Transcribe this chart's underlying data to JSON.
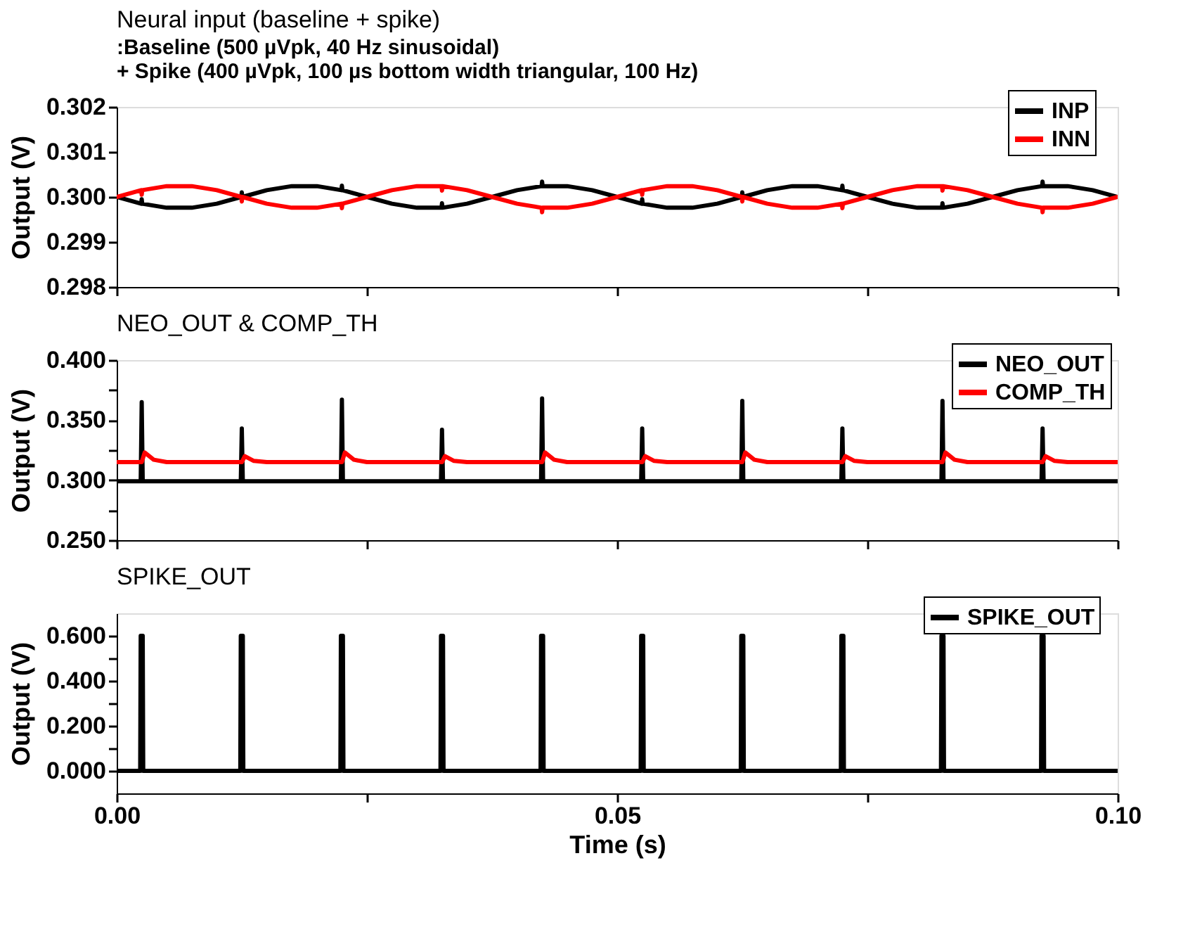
{
  "chart_data": [
    {
      "type": "line",
      "title": "Neural input (baseline + spike)",
      "annotations": [
        ":Baseline (500 µVpk, 40 Hz sinusoidal)",
        "+ Spike (400 µVpk, 100 µs bottom width triangular, 100 Hz)"
      ],
      "ylabel": "Output (V)",
      "x": [
        0,
        0.00245,
        0.0025,
        0.00255,
        0.005,
        0.0075,
        0.01,
        0.01245,
        0.0125,
        0.01255,
        0.015,
        0.0175,
        0.02,
        0.02245,
        0.0225,
        0.02255,
        0.025,
        0.0275,
        0.03,
        0.03245,
        0.0325,
        0.03255,
        0.035,
        0.0375,
        0.04,
        0.04245,
        0.0425,
        0.04255,
        0.045,
        0.0475,
        0.05,
        0.05245,
        0.0525,
        0.05255,
        0.055,
        0.0575,
        0.06,
        0.06245,
        0.0625,
        0.06255,
        0.065,
        0.0675,
        0.07,
        0.07245,
        0.0725,
        0.07255,
        0.075,
        0.0775,
        0.08,
        0.08245,
        0.0825,
        0.08255,
        0.085,
        0.0875,
        0.09,
        0.09245,
        0.0925,
        0.09255,
        0.095,
        0.0975,
        0.1
      ],
      "series": [
        {
          "name": "INP",
          "color": "#000000",
          "values": [
            0.3,
            0.29985,
            0.29995,
            0.29985,
            0.29976,
            0.29976,
            0.29985,
            0.3,
            0.3001,
            0.3,
            0.30015,
            0.30024,
            0.30024,
            0.30015,
            0.30025,
            0.30015,
            0.3,
            0.29985,
            0.29976,
            0.29976,
            0.29986,
            0.29976,
            0.29985,
            0.3,
            0.30015,
            0.30024,
            0.30034,
            0.30024,
            0.30024,
            0.30015,
            0.3,
            0.29985,
            0.29995,
            0.29985,
            0.29976,
            0.29976,
            0.29985,
            0.3,
            0.3001,
            0.3,
            0.30015,
            0.30024,
            0.30024,
            0.30015,
            0.30025,
            0.30015,
            0.3,
            0.29985,
            0.29976,
            0.29976,
            0.29986,
            0.29976,
            0.29985,
            0.3,
            0.30015,
            0.30024,
            0.30034,
            0.30024,
            0.30024,
            0.30015,
            0.3
          ]
        },
        {
          "name": "INN",
          "color": "#ff0000",
          "values": [
            0.3,
            0.30015,
            0.30005,
            0.30015,
            0.30024,
            0.30024,
            0.30015,
            0.3,
            0.2999,
            0.3,
            0.29985,
            0.29976,
            0.29976,
            0.29985,
            0.29975,
            0.29985,
            0.3,
            0.30015,
            0.30024,
            0.30024,
            0.30014,
            0.30024,
            0.30015,
            0.3,
            0.29985,
            0.29976,
            0.29966,
            0.29976,
            0.29976,
            0.29985,
            0.3,
            0.30015,
            0.30005,
            0.30015,
            0.30024,
            0.30024,
            0.30015,
            0.3,
            0.2999,
            0.3,
            0.29985,
            0.29976,
            0.29976,
            0.29985,
            0.29975,
            0.29985,
            0.3,
            0.30015,
            0.30024,
            0.30024,
            0.30014,
            0.30024,
            0.30015,
            0.3,
            0.29985,
            0.29976,
            0.29966,
            0.29976,
            0.29976,
            0.29985,
            0.3
          ]
        }
      ],
      "xlim": [
        0,
        0.1
      ],
      "xticks": [
        {
          "value": 0,
          "label": null
        },
        {
          "value": 0.025,
          "label": null
        },
        {
          "value": 0.05,
          "label": null
        },
        {
          "value": 0.075,
          "label": null
        },
        {
          "value": 0.1,
          "label": null
        }
      ],
      "ylim": [
        0.298,
        0.302
      ],
      "yticks": [
        0.298,
        0.299,
        {
          "value": 0.3,
          "label": "0.300"
        },
        0.301,
        0.302
      ],
      "tick_labels": "y",
      "grid": false,
      "legend": "top right",
      "line_style": "solid",
      "marker": "none"
    },
    {
      "type": "line",
      "title": "NEO_OUT & COMP_TH",
      "ylabel": "Output (V)",
      "series": [
        {
          "name": "NEO_OUT",
          "color": "#000000",
          "x": [
            0,
            0.0024,
            0.0025,
            0.0026,
            0.0124,
            0.0125,
            0.0126,
            0.0224,
            0.0225,
            0.0226,
            0.0324,
            0.0325,
            0.0326,
            0.0424,
            0.0425,
            0.0426,
            0.0524,
            0.0525,
            0.0526,
            0.0624,
            0.0625,
            0.0626,
            0.0724,
            0.0725,
            0.0726,
            0.0824,
            0.0825,
            0.0826,
            0.0924,
            0.0925,
            0.0926,
            0.1
          ],
          "values": [
            0.299,
            0.299,
            0.365,
            0.299,
            0.299,
            0.343,
            0.299,
            0.299,
            0.367,
            0.299,
            0.299,
            0.342,
            0.299,
            0.299,
            0.368,
            0.299,
            0.299,
            0.343,
            0.299,
            0.299,
            0.366,
            0.299,
            0.299,
            0.343,
            0.299,
            0.299,
            0.366,
            0.299,
            0.299,
            0.343,
            0.299,
            0.299
          ]
        },
        {
          "name": "COMP_TH",
          "color": "#ff0000",
          "x": [
            0,
            0.0025,
            0.0028,
            0.0037,
            0.005,
            0.0125,
            0.0128,
            0.0137,
            0.015,
            0.0225,
            0.0228,
            0.0237,
            0.025,
            0.0325,
            0.0328,
            0.0337,
            0.035,
            0.0425,
            0.0428,
            0.0437,
            0.045,
            0.0525,
            0.0528,
            0.0537,
            0.055,
            0.0625,
            0.0628,
            0.0637,
            0.065,
            0.0725,
            0.0728,
            0.0737,
            0.075,
            0.0825,
            0.0828,
            0.0837,
            0.085,
            0.0925,
            0.0928,
            0.0937,
            0.095,
            0.1
          ],
          "values": [
            0.315,
            0.315,
            0.323,
            0.317,
            0.315,
            0.315,
            0.32,
            0.316,
            0.315,
            0.315,
            0.323,
            0.317,
            0.315,
            0.315,
            0.32,
            0.316,
            0.315,
            0.315,
            0.323,
            0.317,
            0.315,
            0.315,
            0.32,
            0.316,
            0.315,
            0.315,
            0.323,
            0.317,
            0.315,
            0.315,
            0.32,
            0.316,
            0.315,
            0.315,
            0.323,
            0.317,
            0.315,
            0.315,
            0.32,
            0.316,
            0.315,
            0.315
          ]
        }
      ],
      "xlim": [
        0,
        0.1
      ],
      "xticks": [
        {
          "value": 0,
          "label": null
        },
        {
          "value": 0.025,
          "label": null
        },
        {
          "value": 0.05,
          "label": null
        },
        {
          "value": 0.075,
          "label": null
        },
        {
          "value": 0.1,
          "label": null
        }
      ],
      "ylim": [
        0.25,
        0.4
      ],
      "yticks": [
        {
          "value": 0.25,
          "label": "0.250"
        },
        {
          "value": 0.275,
          "label": null
        },
        {
          "value": 0.3,
          "label": "0.300"
        },
        {
          "value": 0.325,
          "label": null
        },
        {
          "value": 0.35,
          "label": "0.350"
        },
        {
          "value": 0.375,
          "label": null
        },
        {
          "value": 0.4,
          "label": "0.400"
        }
      ],
      "tick_labels": "y",
      "grid": false,
      "legend": "top right",
      "line_style": "solid",
      "marker": "none"
    },
    {
      "type": "line",
      "title": "SPIKE_OUT",
      "xlabel": "Time (s)",
      "ylabel": "Output (V)",
      "series": [
        {
          "name": "SPIKE_OUT",
          "color": "#000000",
          "x": [
            0,
            0.00235,
            0.0024,
            0.0026,
            0.00265,
            0.01235,
            0.0124,
            0.0126,
            0.01265,
            0.02235,
            0.0224,
            0.0226,
            0.02265,
            0.03235,
            0.0324,
            0.0326,
            0.03265,
            0.04235,
            0.0424,
            0.0426,
            0.04265,
            0.05235,
            0.0524,
            0.0526,
            0.05265,
            0.06235,
            0.0624,
            0.0626,
            0.06265,
            0.07235,
            0.0724,
            0.0726,
            0.07265,
            0.08235,
            0.0824,
            0.0826,
            0.08265,
            0.09235,
            0.0924,
            0.0926,
            0.09265,
            0.1
          ],
          "values": [
            0,
            0,
            0.6,
            0.6,
            0,
            0,
            0.6,
            0.6,
            0,
            0,
            0.6,
            0.6,
            0,
            0,
            0.6,
            0.6,
            0,
            0,
            0.6,
            0.6,
            0,
            0,
            0.6,
            0.6,
            0,
            0,
            0.6,
            0.6,
            0,
            0,
            0.6,
            0.6,
            0,
            0,
            0.6,
            0.6,
            0,
            0,
            0.6,
            0.6,
            0,
            0
          ]
        }
      ],
      "xlim": [
        0,
        0.1
      ],
      "xticks": [
        {
          "value": 0,
          "label": "0.00"
        },
        {
          "value": 0.025,
          "label": null
        },
        0.05,
        {
          "value": 0.075,
          "label": null
        },
        {
          "value": 0.1,
          "label": "0.10"
        }
      ],
      "ylim": [
        -0.1,
        0.7
      ],
      "yticks": [
        {
          "value": 0,
          "label": "0.000"
        },
        {
          "value": 0.1,
          "label": null
        },
        {
          "value": 0.2,
          "label": "0.200"
        },
        {
          "value": 0.3,
          "label": null
        },
        {
          "value": 0.4,
          "label": "0.400"
        },
        {
          "value": 0.5,
          "label": null
        },
        {
          "value": 0.6,
          "label": "0.600"
        }
      ],
      "grid": false,
      "legend": "top right",
      "line_style": "solid",
      "marker": "none"
    }
  ]
}
